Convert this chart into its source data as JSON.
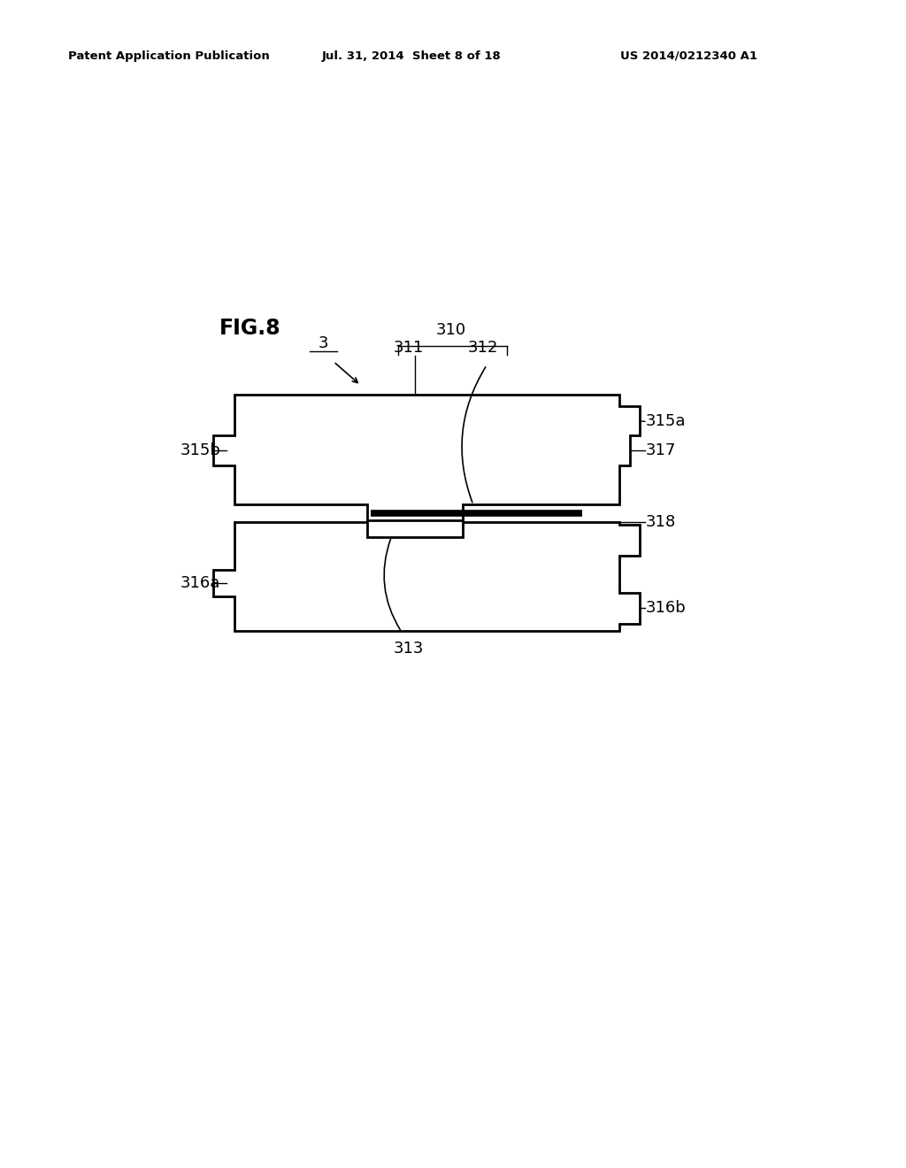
{
  "fig_label": "FIG.8",
  "patent_header_left": "Patent Application Publication",
  "patent_header_mid": "Jul. 31, 2014  Sheet 8 of 18",
  "patent_header_right": "US 2014/0212340 A1",
  "background_color": "#ffffff",
  "line_color": "#000000",
  "label_3": "3",
  "label_310": "310",
  "label_311": "311",
  "label_312": "312",
  "label_313": "313",
  "label_315a": "315a",
  "label_315b": "315b",
  "label_316a": "316a",
  "label_316b": "316b",
  "label_317": "317",
  "label_318": "318"
}
